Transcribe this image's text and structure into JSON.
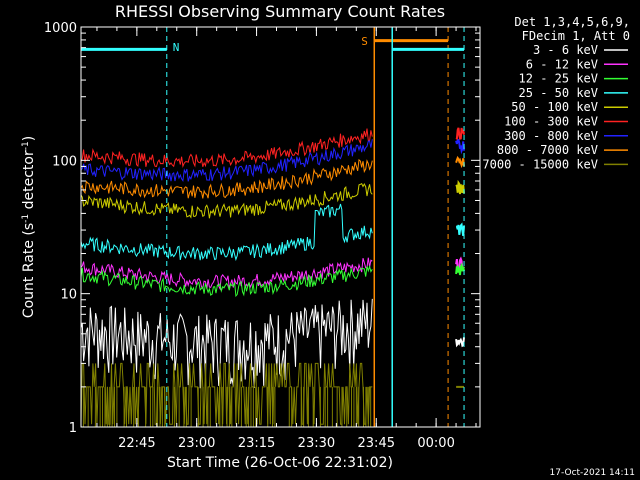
{
  "chart_data": {
    "type": "line",
    "title": "RHESSI Observing Summary Count Rates",
    "xlabel": "Start Time (26-Oct-06 22:31:02)",
    "ylabel": "Count Rate (s",
    "ylabel_sup1": "-1",
    "ylabel_mid": " detector",
    "ylabel_sup2": "-1",
    "ylabel_end": ")",
    "y_scale": "log",
    "ylim": [
      1,
      1000
    ],
    "xlim": [
      "22:31",
      "00:11"
    ],
    "x_ticks": [
      "22:45",
      "23:00",
      "23:15",
      "23:30",
      "23:45",
      "00:00"
    ],
    "y_ticks": [
      "1",
      "10",
      "100",
      "1000"
    ],
    "legend_header": [
      "Det 1,3,4,5,6,9,",
      "FDecim 1, Att 0"
    ],
    "legend_position": "right",
    "flag_markers": [
      {
        "label": "N",
        "color": "#33ffff"
      },
      {
        "label": "S",
        "color": "#ff8c00"
      }
    ],
    "series": [
      {
        "name": "3 - 6 keV",
        "color": "#ffffff",
        "start": 4,
        "end": 4.5
      },
      {
        "name": "6 - 12 keV",
        "color": "#ff33ff",
        "start": 16,
        "end": 17
      },
      {
        "name": "12 - 25 keV",
        "color": "#33ff33",
        "start": 14,
        "end": 15
      },
      {
        "name": "25 - 50 keV",
        "color": "#33ffff",
        "start": 24,
        "end": 30
      },
      {
        "name": "50 - 100 keV",
        "color": "#cccc00",
        "start": 50,
        "end": 62
      },
      {
        "name": "100 - 300 keV",
        "color": "#ff2222",
        "start": 110,
        "end": 160
      },
      {
        "name": "300 - 800 keV",
        "color": "#2222ff",
        "start": 85,
        "end": 130
      },
      {
        "name": "800 - 7000 keV",
        "color": "#ff8c00",
        "start": 65,
        "end": 95
      },
      {
        "name": "7000 - 15000 keV",
        "color": "#808000",
        "start": 1.8,
        "end": 2
      }
    ],
    "footer": "17-Oct-2021 14:11"
  }
}
